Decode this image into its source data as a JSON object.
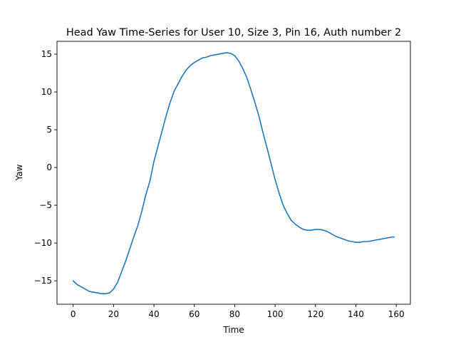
{
  "chart_data": {
    "type": "line",
    "title": "Head Yaw Time-Series for User 10, Size 3, Pin 16, Auth number 2",
    "xlabel": "Time",
    "ylabel": "Yaw",
    "xlim": [
      -8,
      167
    ],
    "ylim": [
      -18.1,
      16.7
    ],
    "xticks": [
      0,
      20,
      40,
      60,
      80,
      100,
      120,
      140,
      160
    ],
    "xtick_labels": [
      "0",
      "20",
      "40",
      "60",
      "80",
      "100",
      "120",
      "140",
      "160"
    ],
    "yticks": [
      -15,
      -10,
      -5,
      0,
      5,
      10,
      15
    ],
    "ytick_labels": [
      "−15",
      "−10",
      "−5",
      "0",
      "5",
      "10",
      "15"
    ],
    "grid": false,
    "series": [
      {
        "color": "#1f77b4",
        "x": [
          0,
          2,
          4,
          6,
          8,
          10,
          12,
          14,
          16,
          18,
          20,
          22,
          24,
          26,
          28,
          30,
          32,
          34,
          36,
          38,
          40,
          42,
          44,
          46,
          48,
          50,
          52,
          54,
          56,
          58,
          60,
          62,
          64,
          66,
          68,
          70,
          72,
          74,
          76,
          78,
          80,
          82,
          84,
          86,
          88,
          90,
          92,
          94,
          96,
          98,
          100,
          102,
          104,
          106,
          108,
          110,
          112,
          114,
          116,
          118,
          120,
          122,
          124,
          126,
          128,
          130,
          132,
          134,
          136,
          138,
          140,
          142,
          144,
          146,
          148,
          150,
          152,
          154,
          156,
          158,
          159
        ],
        "y": [
          -15.0,
          -15.5,
          -15.8,
          -16.1,
          -16.4,
          -16.5,
          -16.6,
          -16.7,
          -16.7,
          -16.6,
          -16.1,
          -15.2,
          -13.8,
          -12.4,
          -10.8,
          -9.2,
          -7.7,
          -5.8,
          -3.6,
          -1.8,
          0.8,
          2.8,
          4.8,
          6.8,
          8.6,
          10.1,
          11.1,
          12.1,
          12.9,
          13.5,
          13.9,
          14.2,
          14.5,
          14.6,
          14.8,
          14.9,
          15.0,
          15.1,
          15.2,
          15.1,
          14.8,
          14.1,
          13.1,
          11.9,
          10.3,
          8.6,
          6.8,
          4.6,
          2.6,
          0.5,
          -1.6,
          -3.4,
          -5.0,
          -6.1,
          -7.0,
          -7.5,
          -7.9,
          -8.2,
          -8.3,
          -8.3,
          -8.2,
          -8.2,
          -8.3,
          -8.5,
          -8.8,
          -9.1,
          -9.3,
          -9.5,
          -9.7,
          -9.8,
          -9.9,
          -9.9,
          -9.8,
          -9.8,
          -9.7,
          -9.6,
          -9.5,
          -9.4,
          -9.3,
          -9.2,
          -9.2
        ]
      }
    ]
  }
}
